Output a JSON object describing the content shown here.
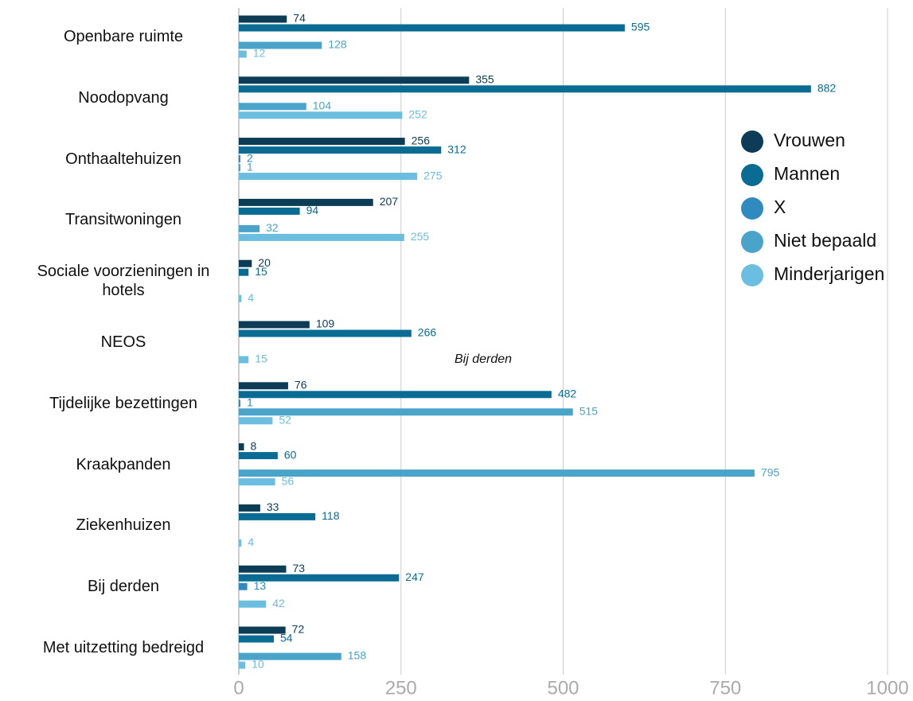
{
  "chart_data": {
    "type": "hbar",
    "categories": [
      "Openbare ruimte",
      "Noodopvang",
      "Onthaaltehuizen",
      "Transitwoningen",
      "Sociale voorzieningen in hotels",
      "NEOS",
      "Tijdelijke bezettingen",
      "Kraakpanden",
      "Ziekenhuizen",
      "Bij derden",
      "Met uitzetting bedreigd"
    ],
    "series": [
      {
        "name": "Vrouwen",
        "color": "#0d3d56",
        "values": [
          74,
          355,
          256,
          207,
          20,
          109,
          76,
          8,
          33,
          73,
          72
        ]
      },
      {
        "name": "Mannen",
        "color": "#0a6c93",
        "values": [
          595,
          882,
          312,
          94,
          15,
          266,
          482,
          60,
          118,
          247,
          54
        ]
      },
      {
        "name": "X",
        "color": "#2f8bbf",
        "values": [
          null,
          null,
          2,
          null,
          null,
          null,
          1,
          null,
          null,
          13,
          null
        ]
      },
      {
        "name": "Niet bepaald",
        "color": "#4aa3c8",
        "values": [
          128,
          104,
          1,
          32,
          null,
          null,
          515,
          795,
          null,
          null,
          158
        ]
      },
      {
        "name": "Minderjarigen",
        "color": "#6bbedf",
        "values": [
          12,
          252,
          275,
          255,
          4,
          15,
          52,
          56,
          4,
          42,
          10
        ]
      }
    ],
    "annotation": "Bij derden",
    "xlim": [
      0,
      1000
    ],
    "xticks": [
      0,
      250,
      500,
      750,
      1000
    ],
    "grid": true,
    "legend": "right"
  }
}
